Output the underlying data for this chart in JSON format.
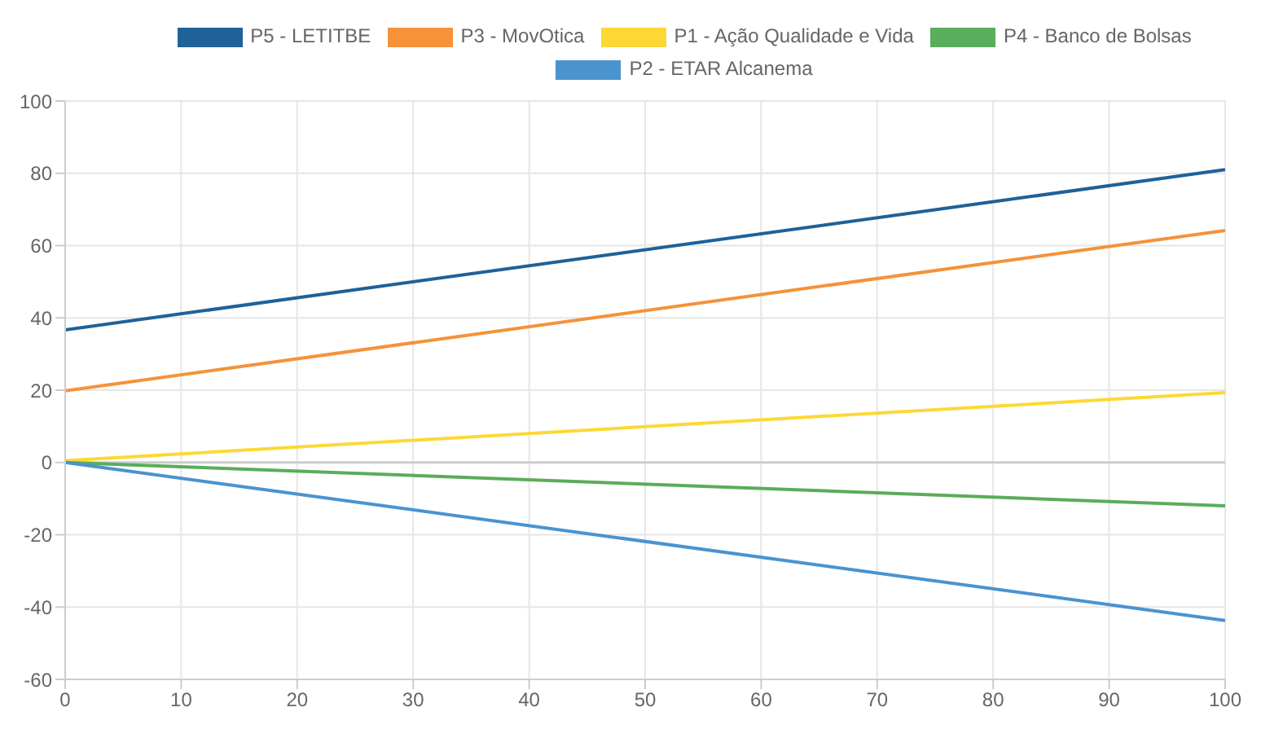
{
  "chart_data": {
    "type": "line",
    "x": [
      0,
      100
    ],
    "series": [
      {
        "name": "P5 - LETITBE",
        "color": "#1f6199",
        "values": [
          36.7,
          81
        ]
      },
      {
        "name": "P3 - MovOtica",
        "color": "#f5923a",
        "values": [
          19.8,
          64.2
        ]
      },
      {
        "name": "P1 - Ação Qualidade e Vida",
        "color": "#fdd835",
        "values": [
          0.5,
          19.3
        ]
      },
      {
        "name": "P4 - Banco de Bolsas",
        "color": "#5aad5a",
        "values": [
          0,
          -12
        ]
      },
      {
        "name": "P2 - ETAR Alcanema",
        "color": "#4a93cf",
        "values": [
          0,
          -43.7
        ]
      }
    ],
    "xlim": [
      0,
      100
    ],
    "xticks": [
      0,
      10,
      20,
      30,
      40,
      50,
      60,
      70,
      80,
      90,
      100
    ],
    "ylim": [
      -60,
      100
    ],
    "yticks": [
      -60,
      -40,
      -20,
      0,
      20,
      40,
      60,
      80,
      100
    ],
    "grid": true,
    "legend": "top",
    "marker": "none",
    "line_style": "solid"
  }
}
